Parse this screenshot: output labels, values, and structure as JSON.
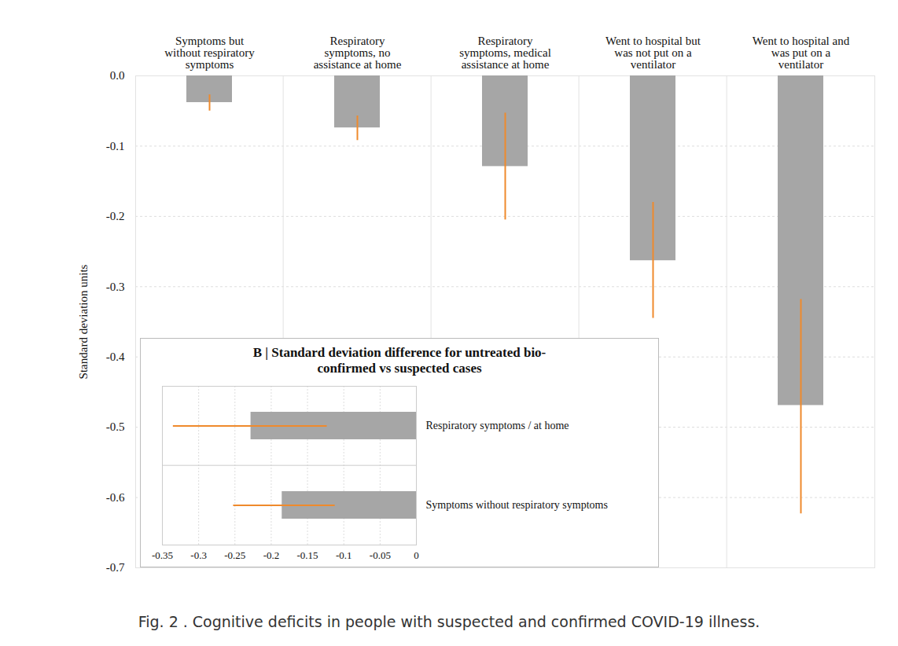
{
  "chart_data": [
    {
      "type": "bar",
      "caption": "Fig. 2 . Cognitive deficits in people with suspected and confirmed COVID-19 illness.",
      "ylabel": "Standard deviation units",
      "categories": [
        "Symptoms but\nwithout respiratory\nsymptoms",
        "Respiratory\nsymptoms, no\nassistance at home",
        "Respiratory\nsymptoms, medical\nassistance at home",
        "Went to hospital but\nwas not put on a\nventilator",
        "Went to hospital and\nwas put on a\nventilator"
      ],
      "values": [
        -0.038,
        -0.074,
        -0.129,
        -0.263,
        -0.469
      ],
      "error_low": [
        -0.05,
        -0.092,
        -0.205,
        -0.345,
        -0.623
      ],
      "error_high": [
        -0.027,
        -0.057,
        -0.053,
        -0.18,
        -0.318
      ],
      "color": "#a6a6a6",
      "ylim": [
        -0.7,
        0
      ],
      "yticks": [
        -0.7,
        -0.6,
        -0.5,
        -0.4,
        -0.3,
        -0.2,
        -0.1,
        {
          "value": 0,
          "label": "0.0"
        }
      ],
      "grid": true
    },
    {
      "type": "bar",
      "orientation": "horizontal",
      "title": "B | Standard deviation difference for untreated bio-\nconfirmed vs suspected cases",
      "categories": [
        "Respiratory symptoms / at home",
        "Symptoms without respiratory symptoms"
      ],
      "values": [
        -0.228,
        -0.185
      ],
      "error_low": [
        -0.335,
        -0.252
      ],
      "error_high": [
        -0.123,
        -0.112
      ],
      "color": "#a6a6a6",
      "xlim": [
        -0.35,
        0
      ],
      "xticks": [
        -0.35,
        -0.3,
        -0.25,
        -0.2,
        -0.15,
        -0.1,
        -0.05,
        0
      ],
      "grid": true
    }
  ]
}
